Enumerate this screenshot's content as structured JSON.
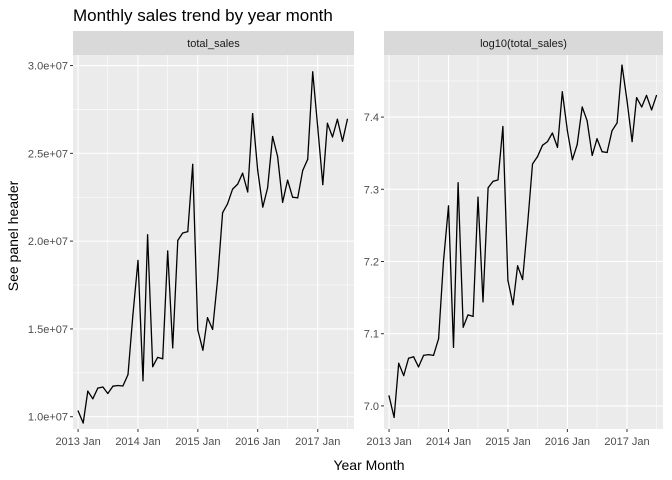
{
  "chart_data": {
    "type": "line",
    "title": "Monthly sales trend by year month",
    "xlabel": "Year Month",
    "ylabel": "See panel header",
    "grid": true,
    "x": [
      "2013-01",
      "2013-02",
      "2013-03",
      "2013-04",
      "2013-05",
      "2013-06",
      "2013-07",
      "2013-08",
      "2013-09",
      "2013-10",
      "2013-11",
      "2013-12",
      "2014-01",
      "2014-02",
      "2014-03",
      "2014-04",
      "2014-05",
      "2014-06",
      "2014-07",
      "2014-08",
      "2014-09",
      "2014-10",
      "2014-11",
      "2014-12",
      "2015-01",
      "2015-02",
      "2015-03",
      "2015-04",
      "2015-05",
      "2015-06",
      "2015-07",
      "2015-08",
      "2015-09",
      "2015-10",
      "2015-11",
      "2015-12",
      "2016-01",
      "2016-02",
      "2016-03",
      "2016-04",
      "2016-05",
      "2016-06",
      "2016-07",
      "2016-08",
      "2016-09",
      "2016-10",
      "2016-11",
      "2016-12",
      "2017-01",
      "2017-02",
      "2017-03",
      "2017-04",
      "2017-05",
      "2017-06",
      "2017-07"
    ],
    "xlim": [
      "2012-12-01",
      "2017-08-10"
    ],
    "x_ticks": [
      {
        "value": "2013-01",
        "label": "2013 Jan"
      },
      {
        "value": "2014-01",
        "label": "2014 Jan"
      },
      {
        "value": "2015-01",
        "label": "2015 Jan"
      },
      {
        "value": "2016-01",
        "label": "2016 Jan"
      },
      {
        "value": "2017-01",
        "label": "2017 Jan"
      }
    ],
    "panels": [
      {
        "strip": "total_sales",
        "ylim": [
          9300000,
          30600000
        ],
        "y_ticks": [
          {
            "value": 10000000,
            "label": "1.0e+07"
          },
          {
            "value": 15000000,
            "label": "1.5e+07"
          },
          {
            "value": 20000000,
            "label": "2.0e+07"
          },
          {
            "value": 25000000,
            "label": "2.5e+07"
          },
          {
            "value": 30000000,
            "label": "3.0e+07"
          }
        ],
        "values": [
          10330000,
          9640000,
          11460000,
          11020000,
          11630000,
          11690000,
          11320000,
          11740000,
          11780000,
          11750000,
          12400000,
          15800000,
          18900000,
          12050000,
          20360000,
          12850000,
          13380000,
          13300000,
          19440000,
          13920000,
          20040000,
          20460000,
          20540000,
          24370000,
          14940000,
          13790000,
          15640000,
          14970000,
          17770000,
          21620000,
          22120000,
          22960000,
          23250000,
          23870000,
          22800000,
          27260000,
          24030000,
          21940000,
          23030000,
          25960000,
          24820000,
          22210000,
          23470000,
          22500000,
          22460000,
          24020000,
          24660000,
          29640000,
          26500000,
          23220000,
          26710000,
          25930000,
          26940000,
          25690000,
          26940000
        ]
      },
      {
        "strip": "log10(total_sales)",
        "ylim": [
          6.968,
          7.486
        ],
        "y_ticks": [
          {
            "value": 7.0,
            "label": "7.0"
          },
          {
            "value": 7.1,
            "label": "7.1"
          },
          {
            "value": 7.2,
            "label": "7.2"
          },
          {
            "value": 7.3,
            "label": "7.3"
          },
          {
            "value": 7.4,
            "label": "7.4"
          }
        ],
        "values": [
          7.014,
          6.984,
          7.059,
          7.042,
          7.066,
          7.068,
          7.054,
          7.07,
          7.071,
          7.07,
          7.093,
          7.199,
          7.277,
          7.081,
          7.309,
          7.109,
          7.126,
          7.124,
          7.289,
          7.144,
          7.302,
          7.311,
          7.313,
          7.387,
          7.174,
          7.14,
          7.194,
          7.175,
          7.25,
          7.335,
          7.345,
          7.361,
          7.366,
          7.378,
          7.358,
          7.435,
          7.381,
          7.341,
          7.362,
          7.414,
          7.395,
          7.347,
          7.37,
          7.352,
          7.351,
          7.381,
          7.392,
          7.472,
          7.423,
          7.366,
          7.427,
          7.414,
          7.43,
          7.41,
          7.43
        ]
      }
    ]
  }
}
